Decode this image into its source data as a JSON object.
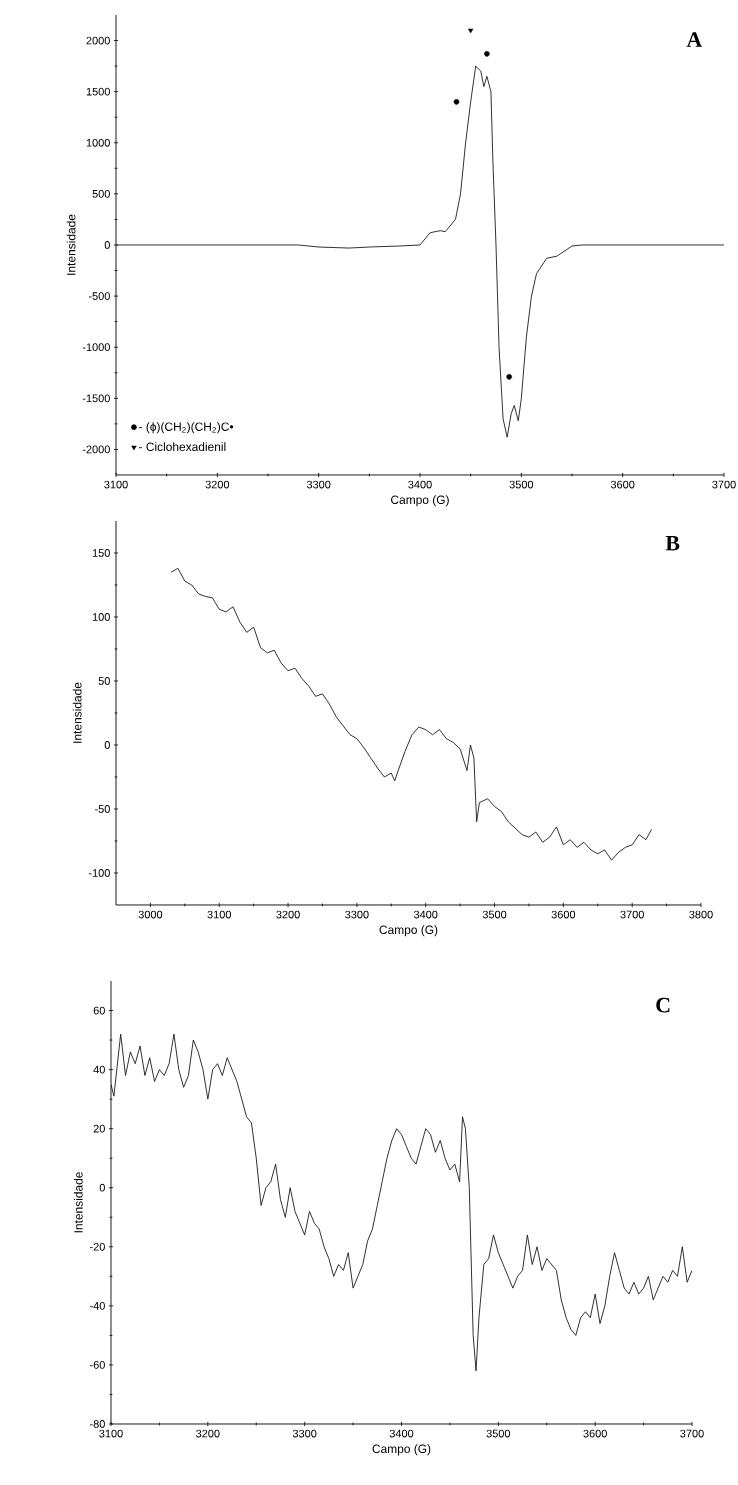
{
  "chart_data": [
    {
      "type": "line",
      "title": "A",
      "xlabel": "Campo (G)",
      "ylabel": "Intensidade",
      "xlim": [
        3100,
        3700
      ],
      "ylim": [
        -2250,
        2250
      ],
      "xticks": [
        3100,
        3200,
        3300,
        3400,
        3500,
        3600,
        3700
      ],
      "yticks": [
        -2000,
        -1500,
        -1000,
        -500,
        0,
        500,
        1000,
        1500,
        2000
      ],
      "legend": "bottom left",
      "series": [
        {
          "color": "#1a1a1a",
          "x": [
            3100,
            3200,
            3280,
            3300,
            3330,
            3350,
            3380,
            3400,
            3410,
            3420,
            3425,
            3435,
            3440,
            3445,
            3450,
            3455,
            3460,
            3463,
            3466,
            3470,
            3472,
            3475,
            3478,
            3482,
            3486,
            3490,
            3493,
            3497,
            3500,
            3505,
            3510,
            3515,
            3525,
            3535,
            3550,
            3560,
            3700
          ],
          "values": [
            0,
            0,
            0,
            -20,
            -30,
            -20,
            -10,
            0,
            120,
            140,
            130,
            250,
            500,
            1000,
            1400,
            1750,
            1700,
            1550,
            1650,
            1500,
            800,
            0,
            -1000,
            -1700,
            -1880,
            -1650,
            -1570,
            -1720,
            -1500,
            -900,
            -500,
            -280,
            -130,
            -110,
            -10,
            0,
            0
          ]
        },
        {
          "type": "scatter",
          "name": "- (ϕ)(CH$_{2}$)(CH$_{2}$)C•",
          "marker": "circle",
          "color": "#000000",
          "x": [
            3436,
            3466,
            3488
          ],
          "values": [
            1400,
            1870,
            -1290
          ]
        },
        {
          "type": "scatter",
          "name": "- Ciclohexadienil",
          "marker": "triangle",
          "color": "#000000",
          "x": [
            3450
          ],
          "values": [
            2100
          ]
        }
      ]
    },
    {
      "type": "line",
      "title": "B",
      "xlabel": "Campo (G)",
      "ylabel": "Intensidade",
      "xlim": [
        2950,
        3800
      ],
      "ylim": [
        -125,
        175
      ],
      "xticks": [
        3000,
        3100,
        3200,
        3300,
        3400,
        3500,
        3600,
        3700,
        3800
      ],
      "yticks": [
        -100,
        -50,
        0,
        50,
        100,
        150
      ],
      "series": [
        {
          "color": "#1a1a1a",
          "x": [
            3030,
            3040,
            3050,
            3060,
            3070,
            3080,
            3090,
            3100,
            3110,
            3120,
            3130,
            3140,
            3150,
            3160,
            3170,
            3180,
            3190,
            3200,
            3210,
            3220,
            3230,
            3240,
            3250,
            3260,
            3270,
            3280,
            3290,
            3300,
            3310,
            3320,
            3330,
            3340,
            3350,
            3355,
            3360,
            3370,
            3380,
            3390,
            3400,
            3410,
            3420,
            3430,
            3440,
            3450,
            3460,
            3465,
            3470,
            3474,
            3478,
            3490,
            3500,
            3510,
            3520,
            3530,
            3540,
            3550,
            3560,
            3570,
            3580,
            3590,
            3600,
            3610,
            3620,
            3630,
            3640,
            3650,
            3660,
            3670,
            3680,
            3690,
            3700,
            3710,
            3720,
            3728
          ],
          "values": [
            135,
            138,
            128,
            125,
            118,
            116,
            115,
            106,
            104,
            108,
            96,
            88,
            92,
            76,
            72,
            74,
            64,
            58,
            60,
            52,
            46,
            38,
            40,
            32,
            22,
            15,
            8,
            5,
            -2,
            -10,
            -18,
            -25,
            -22,
            -28,
            -20,
            -5,
            8,
            14,
            12,
            8,
            12,
            5,
            2,
            -3,
            -20,
            0,
            -10,
            -60,
            -45,
            -42,
            -48,
            -52,
            -60,
            -65,
            -70,
            -72,
            -68,
            -76,
            -72,
            -64,
            -78,
            -74,
            -80,
            -76,
            -82,
            -85,
            -82,
            -90,
            -84,
            -80,
            -78,
            -70,
            -74,
            -66
          ]
        }
      ]
    },
    {
      "type": "line",
      "title": "C",
      "xlabel": "Campo (G)",
      "ylabel": "Intensidade",
      "xlim": [
        3100,
        3700
      ],
      "ylim": [
        -80,
        70
      ],
      "xticks": [
        3100,
        3200,
        3300,
        3400,
        3500,
        3600,
        3700
      ],
      "yticks": [
        -80,
        -60,
        -40,
        -20,
        0,
        20,
        40,
        60
      ],
      "series": [
        {
          "color": "#1a1a1a",
          "x": [
            3100,
            3103,
            3110,
            3115,
            3120,
            3125,
            3130,
            3135,
            3140,
            3145,
            3150,
            3155,
            3160,
            3165,
            3170,
            3175,
            3180,
            3185,
            3190,
            3195,
            3200,
            3205,
            3210,
            3215,
            3220,
            3225,
            3230,
            3235,
            3240,
            3245,
            3250,
            3255,
            3260,
            3265,
            3270,
            3275,
            3280,
            3285,
            3290,
            3295,
            3300,
            3305,
            3310,
            3315,
            3320,
            3325,
            3330,
            3335,
            3340,
            3345,
            3350,
            3355,
            3360,
            3365,
            3370,
            3375,
            3380,
            3385,
            3390,
            3395,
            3400,
            3405,
            3410,
            3415,
            3420,
            3425,
            3430,
            3435,
            3440,
            3445,
            3450,
            3455,
            3460,
            3463,
            3466,
            3470,
            3474,
            3477,
            3480,
            3485,
            3490,
            3495,
            3500,
            3505,
            3510,
            3515,
            3520,
            3525,
            3530,
            3535,
            3540,
            3545,
            3550,
            3555,
            3560,
            3565,
            3570,
            3575,
            3580,
            3585,
            3590,
            3595,
            3600,
            3605,
            3610,
            3615,
            3620,
            3625,
            3630,
            3635,
            3640,
            3645,
            3650,
            3655,
            3660,
            3665,
            3670,
            3675,
            3680,
            3685,
            3690,
            3695,
            3700
          ],
          "values": [
            35,
            31,
            52,
            38,
            46,
            42,
            48,
            38,
            44,
            36,
            40,
            38,
            42,
            52,
            40,
            34,
            38,
            50,
            46,
            40,
            30,
            40,
            42,
            38,
            44,
            40,
            36,
            30,
            24,
            22,
            10,
            -6,
            0,
            2,
            8,
            -4,
            -10,
            0,
            -8,
            -12,
            -16,
            -8,
            -12,
            -14,
            -20,
            -24,
            -30,
            -26,
            -28,
            -22,
            -34,
            -30,
            -26,
            -18,
            -14,
            -6,
            2,
            10,
            16,
            20,
            18,
            14,
            10,
            8,
            14,
            20,
            18,
            12,
            16,
            10,
            6,
            8,
            2,
            24,
            20,
            0,
            -50,
            -62,
            -44,
            -26,
            -24,
            -16,
            -22,
            -26,
            -30,
            -34,
            -30,
            -28,
            -16,
            -26,
            -20,
            -28,
            -24,
            -26,
            -28,
            -38,
            -44,
            -48,
            -50,
            -44,
            -42,
            -44,
            -36,
            -46,
            -40,
            -30,
            -22,
            -28,
            -34,
            -36,
            -32,
            -36,
            -34,
            -30,
            -38,
            -34,
            -30,
            -32,
            -28,
            -30,
            -20,
            -32,
            -28
          ]
        }
      ]
    }
  ]
}
